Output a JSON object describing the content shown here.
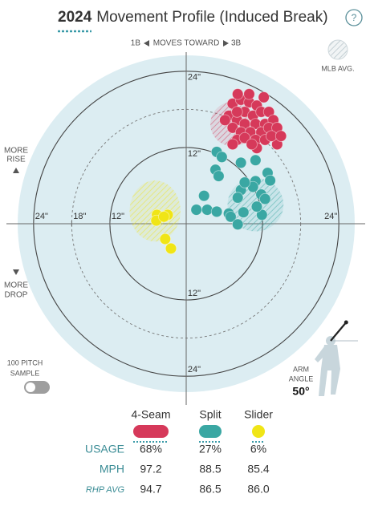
{
  "chart_data": {
    "type": "scatter",
    "title_year": "2024",
    "title": "Movement Profile (Induced Break)",
    "help": "?",
    "direction": {
      "left": "1B",
      "middle": "MOVES TOWARD",
      "right": "3B"
    },
    "mlb_avg_label": "MLB AVG.",
    "rise_label": [
      "MORE",
      "RISE"
    ],
    "drop_label": [
      "MORE",
      "DROP"
    ],
    "sample_label": [
      "100 PITCH",
      "SAMPLE"
    ],
    "arm_angle": {
      "label_lines": [
        "ARM",
        "ANGLE"
      ],
      "value": 50,
      "value_label": "50°"
    },
    "xlim": [
      -26.5,
      26.5
    ],
    "ylim": [
      -26.5,
      26.5
    ],
    "rings": [
      {
        "value": 12,
        "style": "solid"
      },
      {
        "value": 18,
        "style": "dashed"
      },
      {
        "value": 24,
        "style": "solid"
      }
    ],
    "xticks": [
      {
        "value": -24,
        "label": "24\""
      },
      {
        "value": -18,
        "label": "18\""
      },
      {
        "value": -12,
        "label": "12\""
      },
      {
        "value": 24,
        "label": "24\""
      }
    ],
    "yticks": [
      {
        "value": 24,
        "label": "24\""
      },
      {
        "value": 12,
        "label": "12\""
      },
      {
        "value": -12,
        "label": "12\""
      },
      {
        "value": -24,
        "label": "24\""
      }
    ],
    "series": [
      {
        "name": "4-Seam",
        "color": "#d6395a",
        "x": [
          7.3,
          8.6,
          9.9,
          11.1,
          9.2,
          10.5,
          11.8,
          13.0,
          6.7,
          8.0,
          9.2,
          10.9,
          12.4,
          13.7,
          7.3,
          8.6,
          10.1,
          11.8,
          13.0,
          14.3,
          8.0,
          9.2,
          10.9,
          12.4,
          7.3,
          11.1,
          14.3,
          9.9,
          8.1,
          6.1,
          8.0,
          12.2,
          13.4,
          10.3,
          14.9
        ],
        "y": [
          18.9,
          19.5,
          19.1,
          18.6,
          17.6,
          17.0,
          17.6,
          17.6,
          17.0,
          16.3,
          15.7,
          15.7,
          15.7,
          16.3,
          15.1,
          14.4,
          14.4,
          14.4,
          15.1,
          15.1,
          13.2,
          13.5,
          13.2,
          13.2,
          12.5,
          11.9,
          12.5,
          20.4,
          20.4,
          16.3,
          17.6,
          19.9,
          13.8,
          12.5,
          13.8
        ],
        "mlb_avg": {
          "x": 7.3,
          "y": 15.7,
          "rx": 3.5,
          "ry": 3.5
        }
      },
      {
        "name": "Split",
        "color": "#3aa7a3",
        "x": [
          4.8,
          5.6,
          4.6,
          5.1,
          8.6,
          10.9,
          12.8,
          10.9,
          13.2,
          10.5,
          8.6,
          11.8,
          2.8,
          8.1,
          12.4,
          1.6,
          3.3,
          4.8,
          6.7,
          9.0,
          7.0,
          8.1,
          11.9,
          11.1,
          9.2
        ],
        "y": [
          11.3,
          10.5,
          8.5,
          7.5,
          9.6,
          10.0,
          8.0,
          6.7,
          6.8,
          5.8,
          5.3,
          4.6,
          4.4,
          4.1,
          3.9,
          2.2,
          2.2,
          1.9,
          1.6,
          1.8,
          1.1,
          -0.1,
          1.4,
          2.7,
          6.5
        ],
        "mlb_avg": {
          "x": 10.9,
          "y": 3.0,
          "rx": 4.4,
          "ry": 4.2
        }
      },
      {
        "name": "Slider",
        "color": "#f0e516",
        "x": [
          -4.6,
          -2.9,
          -4.7,
          -3.3,
          -2.4,
          -3.5
        ],
        "y": [
          1.4,
          1.4,
          0.5,
          -2.4,
          -3.9,
          1.1
        ],
        "mlb_avg": {
          "x": -4.9,
          "y": 2.0,
          "rx": 4.0,
          "ry": 4.8
        }
      }
    ],
    "table": {
      "rows": [
        {
          "label": "USAGE",
          "cells": [
            "68%",
            "27%",
            "6%"
          ]
        },
        {
          "label": "MPH",
          "cells": [
            "97.2",
            "88.5",
            "85.4"
          ]
        },
        {
          "label": "RHP AVG",
          "cells": [
            "94.7",
            "86.5",
            "86.0"
          ]
        }
      ]
    }
  }
}
